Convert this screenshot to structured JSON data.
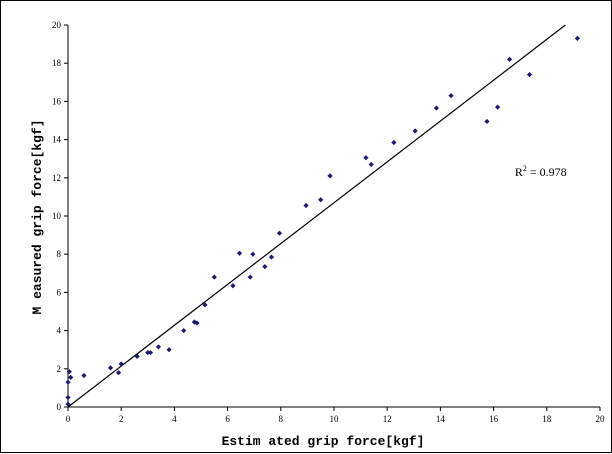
{
  "chart_data": {
    "type": "scatter",
    "xlabel": "Estim ated grip force[kgf]",
    "ylabel": "M easured grip force[kgf]",
    "xlim": [
      0,
      20
    ],
    "ylim": [
      0,
      20
    ],
    "xticks": [
      "0",
      "2",
      "4",
      "6",
      "8",
      "10",
      "12",
      "14",
      "16",
      "18",
      "20"
    ],
    "yticks": [
      "0",
      "2",
      "4",
      "6",
      "8",
      "10",
      "12",
      "14",
      "16",
      "18",
      "20"
    ],
    "grid": false,
    "legend": "none",
    "annotation": {
      "prefix": "R",
      "superscript": "2",
      "suffix": " = 0.978",
      "x": 16.8,
      "y": 12.1
    },
    "marker_color": "#1c1c6e",
    "fit_line": {
      "x": [
        0,
        18.7
      ],
      "y": [
        0,
        20
      ]
    },
    "series": [
      {
        "x": [
          0.0,
          0.0,
          0.0,
          0.05,
          0.1,
          0.6,
          1.6,
          1.9,
          2.0,
          2.6,
          3.0,
          3.1,
          3.4,
          3.8,
          4.35,
          4.75,
          4.85,
          5.15,
          5.5,
          6.2,
          6.45,
          6.85,
          6.95,
          7.4,
          7.65,
          7.95,
          8.95,
          9.5,
          9.85,
          11.2,
          11.4,
          12.25,
          13.05,
          13.85,
          14.4,
          15.75,
          16.15,
          16.6,
          17.35,
          19.15
        ],
        "y": [
          0.15,
          0.5,
          1.3,
          1.85,
          1.55,
          1.65,
          2.05,
          1.8,
          2.25,
          2.65,
          2.85,
          2.85,
          3.15,
          3.0,
          4.0,
          4.45,
          4.4,
          5.35,
          6.8,
          6.35,
          8.05,
          6.8,
          8.0,
          7.35,
          7.85,
          9.1,
          10.55,
          10.85,
          12.1,
          13.05,
          12.7,
          13.85,
          14.45,
          15.65,
          16.3,
          14.95,
          15.7,
          18.2,
          17.4,
          19.3
        ]
      }
    ]
  }
}
